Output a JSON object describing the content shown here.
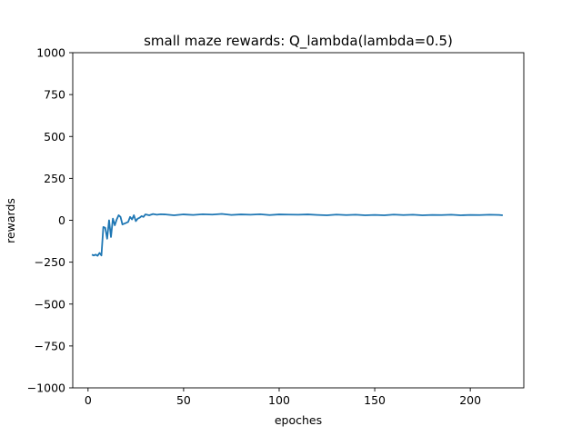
{
  "chart_data": {
    "type": "line",
    "title": "small maze rewards: Q_lambda(lambda=0.5)",
    "xlabel": "epoches",
    "ylabel": "rewards",
    "xlim": [
      -8,
      228
    ],
    "ylim": [
      -1000,
      1000
    ],
    "x_ticks": [
      0,
      50,
      100,
      150,
      200
    ],
    "y_ticks": [
      -1000,
      -750,
      -500,
      -250,
      0,
      250,
      500,
      750,
      1000
    ],
    "x_tick_labels": [
      "0",
      "50",
      "100",
      "150",
      "200"
    ],
    "y_tick_labels": [
      "−1000",
      "−750",
      "−500",
      "−250",
      "0",
      "250",
      "500",
      "750",
      "1000"
    ],
    "grid": false,
    "series": [
      {
        "color": "#1f77b4",
        "x": [
          2,
          3,
          4,
          5,
          6,
          7,
          8,
          9,
          10,
          11,
          12,
          13,
          14,
          15,
          16,
          17,
          18,
          19,
          20,
          21,
          22,
          23,
          24,
          25,
          26,
          27,
          28,
          29,
          30,
          32,
          34,
          36,
          38,
          40,
          45,
          50,
          55,
          60,
          65,
          70,
          75,
          80,
          85,
          90,
          95,
          100,
          105,
          110,
          115,
          120,
          125,
          130,
          135,
          140,
          145,
          150,
          155,
          160,
          165,
          170,
          175,
          180,
          185,
          190,
          195,
          200,
          205,
          210,
          215,
          217
        ],
        "values": [
          -205,
          -210,
          -205,
          -212,
          -195,
          -210,
          -40,
          -45,
          -110,
          0,
          -100,
          10,
          -30,
          5,
          30,
          20,
          -25,
          -20,
          -15,
          -10,
          20,
          5,
          30,
          -5,
          10,
          15,
          25,
          20,
          35,
          30,
          37,
          33,
          36,
          35,
          30,
          35,
          32,
          36,
          34,
          38,
          32,
          35,
          33,
          36,
          31,
          35,
          34,
          33,
          35,
          32,
          30,
          34,
          31,
          33,
          30,
          32,
          30,
          34,
          31,
          33,
          30,
          32,
          31,
          33,
          30,
          32,
          31,
          33,
          32,
          30
        ]
      }
    ]
  }
}
